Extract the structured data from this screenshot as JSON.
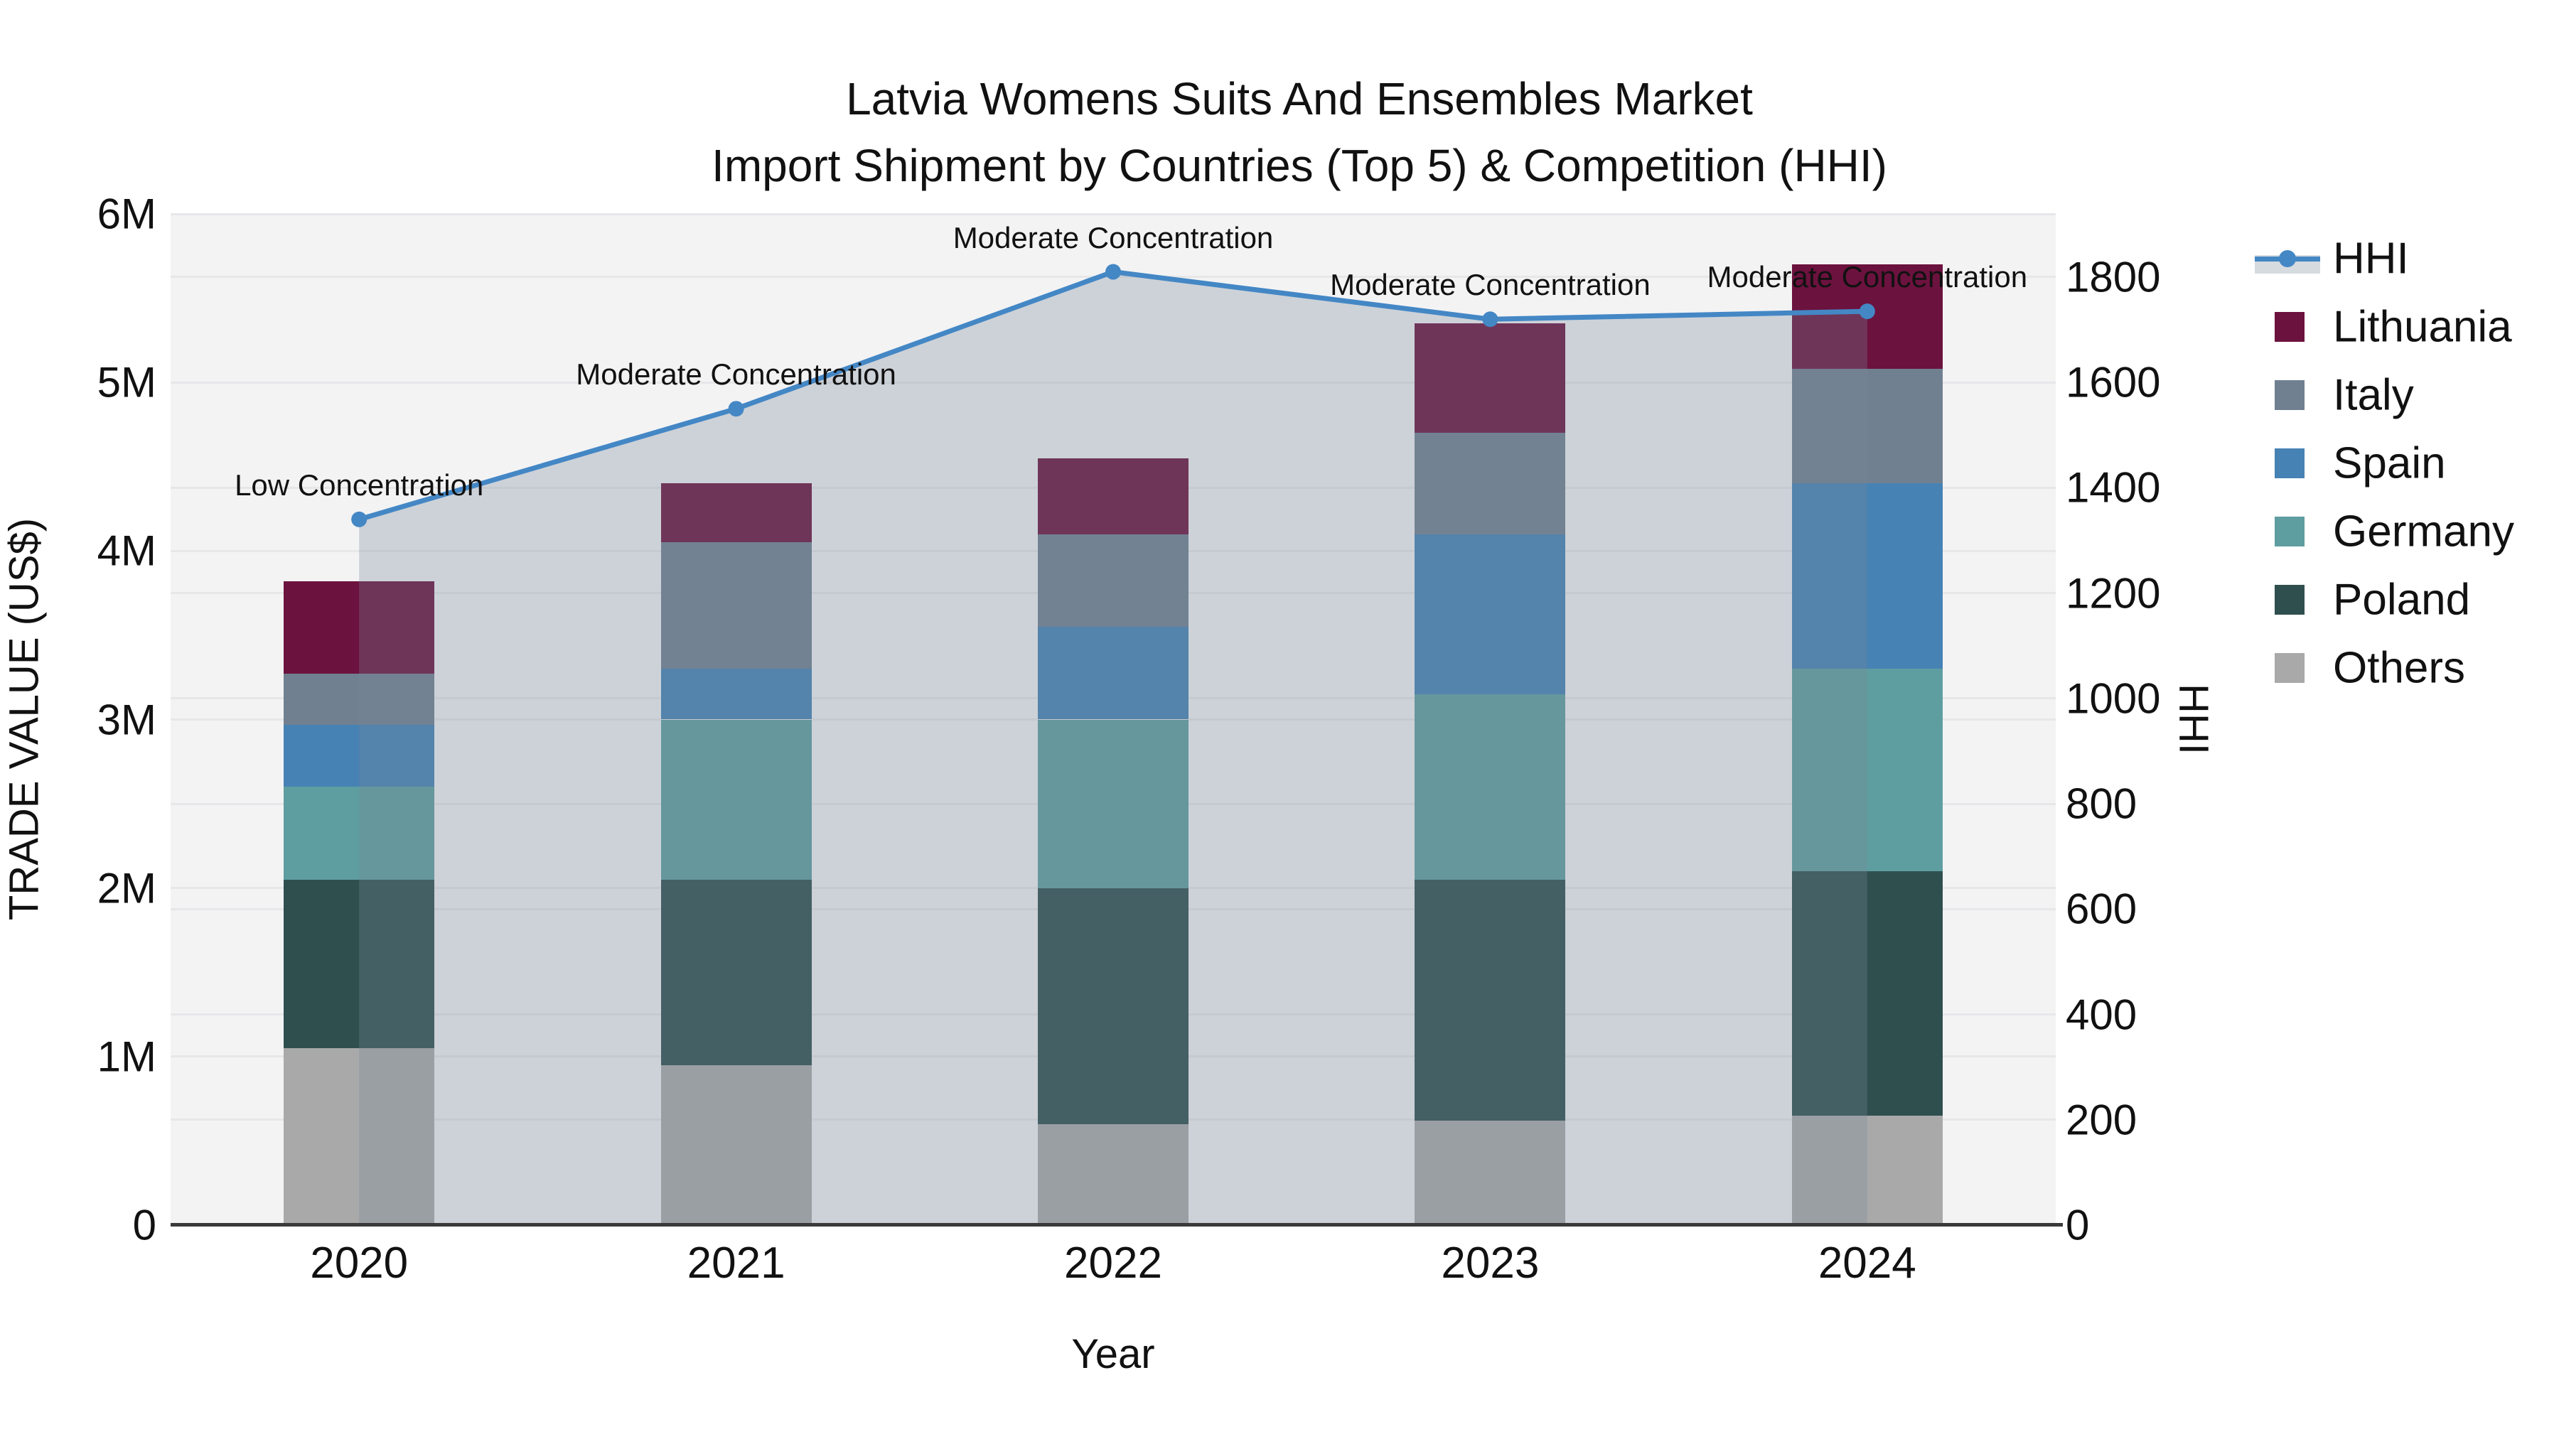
{
  "title": {
    "line1": "Latvia Womens Suits And Ensembles Market",
    "line2": "Import Shipment by Countries (Top 5) & Competition (HHI)"
  },
  "axes": {
    "x": {
      "title": "Year",
      "tick_labels": [
        "2020",
        "2021",
        "2022",
        "2023",
        "2024"
      ]
    },
    "y_left": {
      "title": "TRADE VALUE (US$)",
      "tick_labels": [
        "0",
        "1M",
        "2M",
        "3M",
        "4M",
        "5M",
        "6M"
      ],
      "tick_values_musd": [
        0,
        1,
        2,
        3,
        4,
        5,
        6
      ],
      "range_musd": [
        0,
        6
      ]
    },
    "y_right": {
      "title": "HHI",
      "tick_labels": [
        "0",
        "200",
        "400",
        "600",
        "800",
        "1000",
        "1200",
        "1400",
        "1600",
        "1800"
      ],
      "tick_values": [
        0,
        200,
        400,
        600,
        800,
        1000,
        1200,
        1400,
        1600,
        1800
      ],
      "range": [
        0,
        1920
      ]
    }
  },
  "legend": {
    "items": [
      {
        "label": "HHI",
        "marker": "line-dot",
        "color": "#4487C5"
      },
      {
        "label": "Lithuania",
        "marker": "square",
        "color": "#6C123E"
      },
      {
        "label": "Italy",
        "marker": "square",
        "color": "#708090"
      },
      {
        "label": "Spain",
        "marker": "square",
        "color": "#4682B4"
      },
      {
        "label": "Germany",
        "marker": "square",
        "color": "#5F9EA0"
      },
      {
        "label": "Poland",
        "marker": "square",
        "color": "#2F4F4F"
      },
      {
        "label": "Others",
        "marker": "square",
        "color": "#A9A9A9"
      }
    ]
  },
  "chart_data": {
    "type": "bar+line",
    "categories": [
      "2020",
      "2021",
      "2022",
      "2023",
      "2024"
    ],
    "bar_unit": "million US$",
    "bar_stack_order_bottom_to_top": [
      "Others",
      "Poland",
      "Germany",
      "Spain",
      "Italy",
      "Lithuania"
    ],
    "series": [
      {
        "name": "Others",
        "color": "#A9A9A9",
        "values_musd": [
          1.05,
          0.95,
          0.6,
          0.62,
          0.65
        ]
      },
      {
        "name": "Poland",
        "color": "#2F4F4F",
        "values_musd": [
          1.0,
          1.1,
          1.4,
          1.43,
          1.45
        ]
      },
      {
        "name": "Germany",
        "color": "#5F9EA0",
        "values_musd": [
          0.55,
          0.95,
          1.0,
          1.1,
          1.2
        ]
      },
      {
        "name": "Spain",
        "color": "#4682B4",
        "values_musd": [
          0.37,
          0.3,
          0.55,
          0.95,
          1.1
        ]
      },
      {
        "name": "Italy",
        "color": "#708090",
        "values_musd": [
          0.3,
          0.75,
          0.55,
          0.6,
          0.68
        ]
      },
      {
        "name": "Lithuania",
        "color": "#6C123E",
        "values_musd": [
          0.55,
          0.35,
          0.45,
          0.65,
          0.62
        ]
      }
    ],
    "totals_musd": [
      3.82,
      4.4,
      4.55,
      5.35,
      5.7
    ],
    "line_series": {
      "name": "HHI",
      "axis": "right",
      "color": "#4487C5",
      "area_fill": "rgba(119,136,153,0.30)",
      "values": [
        1340,
        1550,
        1810,
        1720,
        1735
      ]
    },
    "point_annotations": [
      "Low Concentration",
      "Moderate Concentration",
      "Moderate Concentration",
      "Moderate Concentration",
      "Moderate Concentration"
    ],
    "xlabel": "Year",
    "ylabel_left": "TRADE VALUE (US$)",
    "ylabel_right": "HHI",
    "ylim_left_musd": [
      0,
      6
    ],
    "ylim_right": [
      0,
      1920
    ],
    "grid": "on",
    "legend_position": "outside-top-right"
  },
  "style": {
    "page_bg": "#FFFFFF",
    "plot_bg": "#F3F3F4",
    "grid_color": "#E7E7E9",
    "baseline_color": "#3A3A3A",
    "text_color": "#111111"
  }
}
